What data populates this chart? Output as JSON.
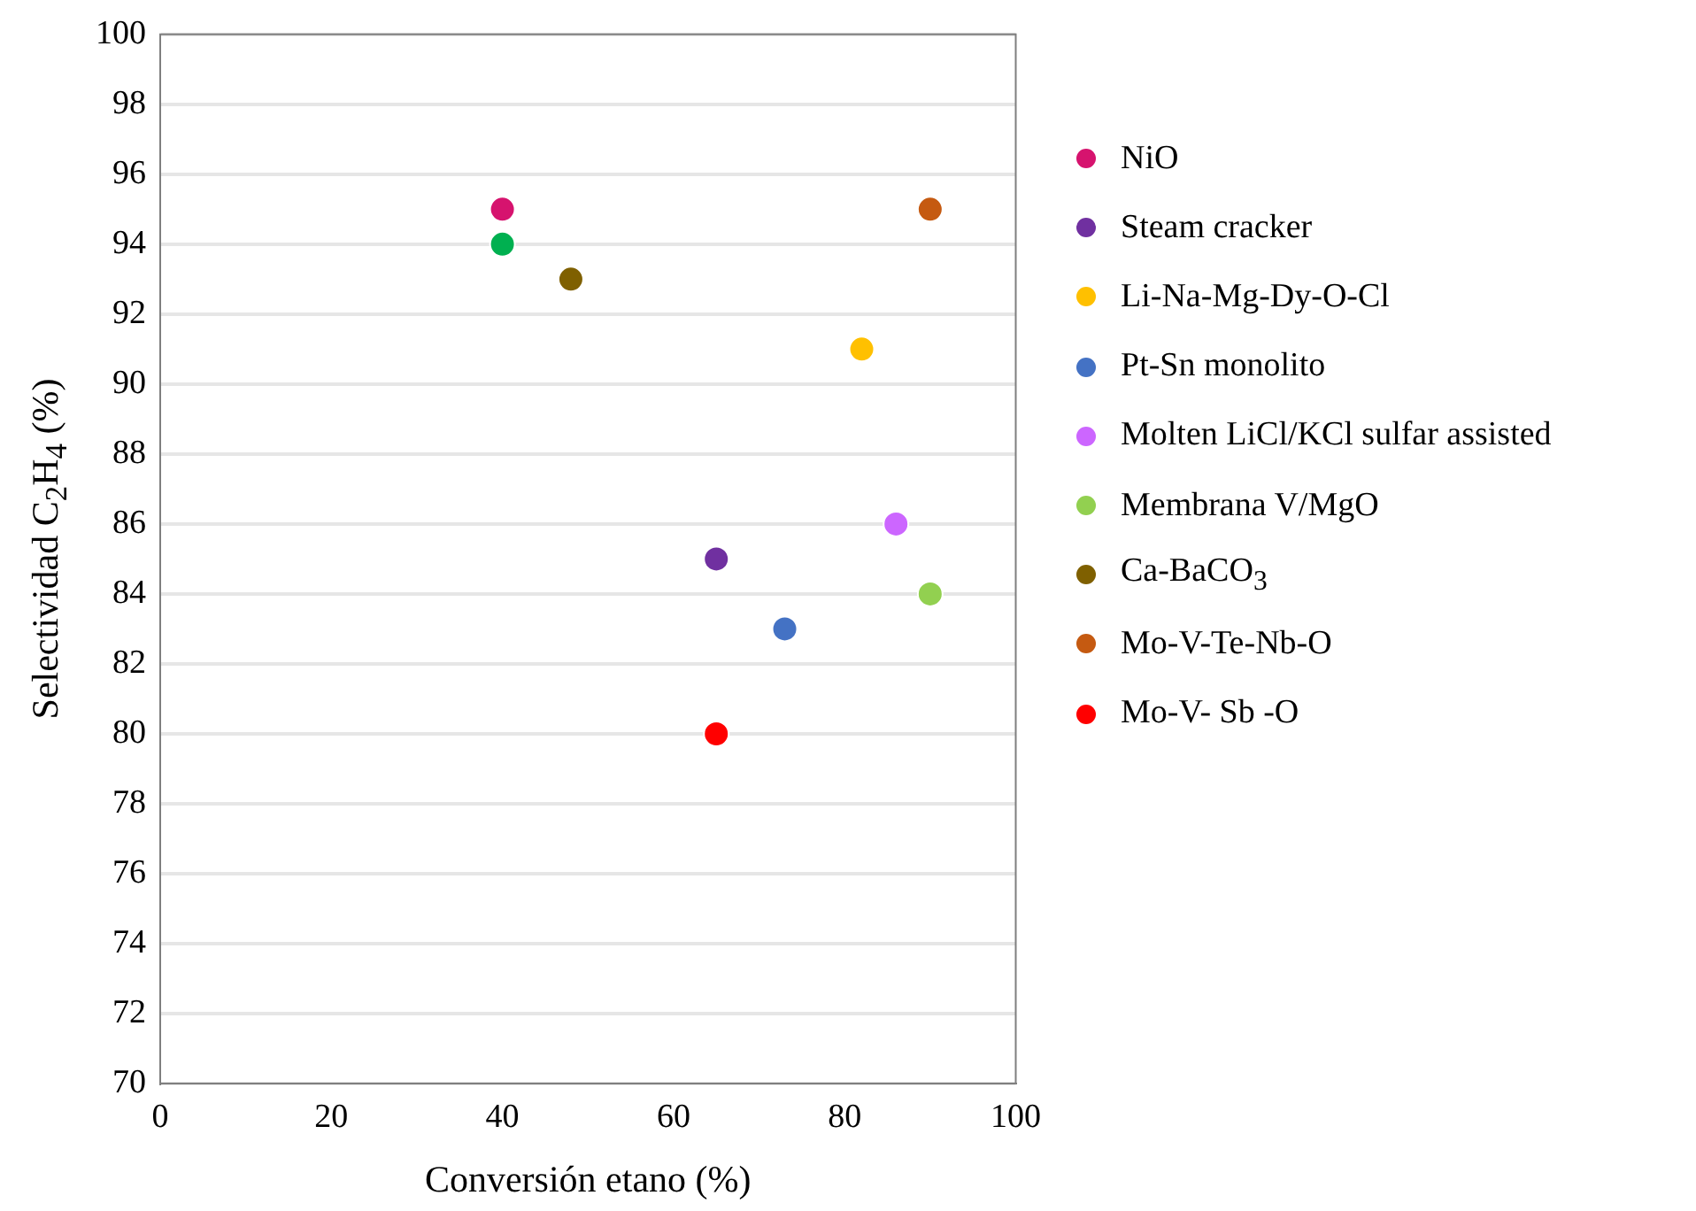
{
  "chart_data": {
    "type": "scatter",
    "xlabel": "Conversión etano (%)",
    "ylabel": "Selectividad C$_{2}$H$_{4}$ (%)",
    "xlim": [
      0,
      100
    ],
    "xticks": [
      0,
      20,
      40,
      60,
      80,
      100
    ],
    "ylim": [
      70,
      100
    ],
    "yticks": [
      70,
      72,
      74,
      76,
      78,
      80,
      82,
      84,
      86,
      88,
      90,
      92,
      94,
      96,
      98,
      100
    ],
    "grid": "y",
    "legend": "right",
    "marker": "circle",
    "series": [
      {
        "name": "NiO",
        "color": "#d6136e",
        "x": [
          40
        ],
        "values": [
          95
        ]
      },
      {
        "color": "#00b050",
        "x": [
          40
        ],
        "values": [
          94
        ]
      },
      {
        "name": "Steam cracker",
        "color": "#7030a0",
        "x": [
          65
        ],
        "values": [
          85
        ]
      },
      {
        "name": "Li-Na-Mg-Dy-O-Cl",
        "color": "#ffc000",
        "x": [
          82
        ],
        "values": [
          91
        ]
      },
      {
        "name": "Pt-Sn monolito",
        "color": "#4472c4",
        "x": [
          73
        ],
        "values": [
          83
        ]
      },
      {
        "name": "Molten LiCl/KCl sulfar assisted",
        "color": "#cc66ff",
        "x": [
          86
        ],
        "values": [
          86
        ]
      },
      {
        "name": "Membrana V/MgO",
        "color": "#92d050",
        "x": [
          90
        ],
        "values": [
          84
        ]
      },
      {
        "name": "Ca-BaCO$_{3}$",
        "color": "#7f6000",
        "x": [
          48
        ],
        "values": [
          93
        ]
      },
      {
        "name": "Mo-V-Te-Nb-O",
        "color": "#c55a11",
        "x": [
          90
        ],
        "values": [
          95
        ]
      },
      {
        "name": "Mo-V- Sb -O",
        "color": "#ff0000",
        "x": [
          65
        ],
        "values": [
          80
        ]
      }
    ]
  }
}
